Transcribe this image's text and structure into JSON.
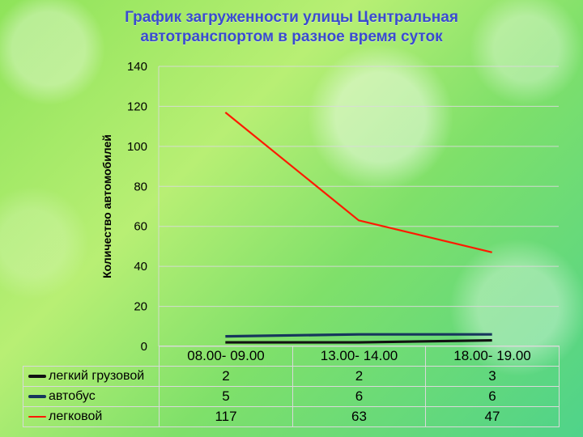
{
  "title_line1": "График загруженности улицы Центральная",
  "title_line2": "автотранспортом в разное время суток",
  "chart_data": {
    "type": "line",
    "title": "График загруженности улицы Центральная автотранспортом в разное время суток",
    "ylabel": "Количество автомобилей",
    "xlabel": "",
    "ylim": [
      0,
      140
    ],
    "yticks": [
      "0",
      "20",
      "40",
      "60",
      "80",
      "100",
      "120",
      "140"
    ],
    "categories": [
      "08.00- 09.00",
      "13.00- 14.00",
      "18.00- 19.00"
    ],
    "grid": true,
    "legend": "data-table",
    "series": [
      {
        "name": "легкий грузовой",
        "values": [
          2,
          2,
          3
        ],
        "color": "#111111"
      },
      {
        "name": "автобус",
        "values": [
          5,
          6,
          6
        ],
        "color": "#16365c"
      },
      {
        "name": "легковой",
        "values": [
          117,
          63,
          47
        ],
        "color": "#ff1a00"
      }
    ]
  }
}
